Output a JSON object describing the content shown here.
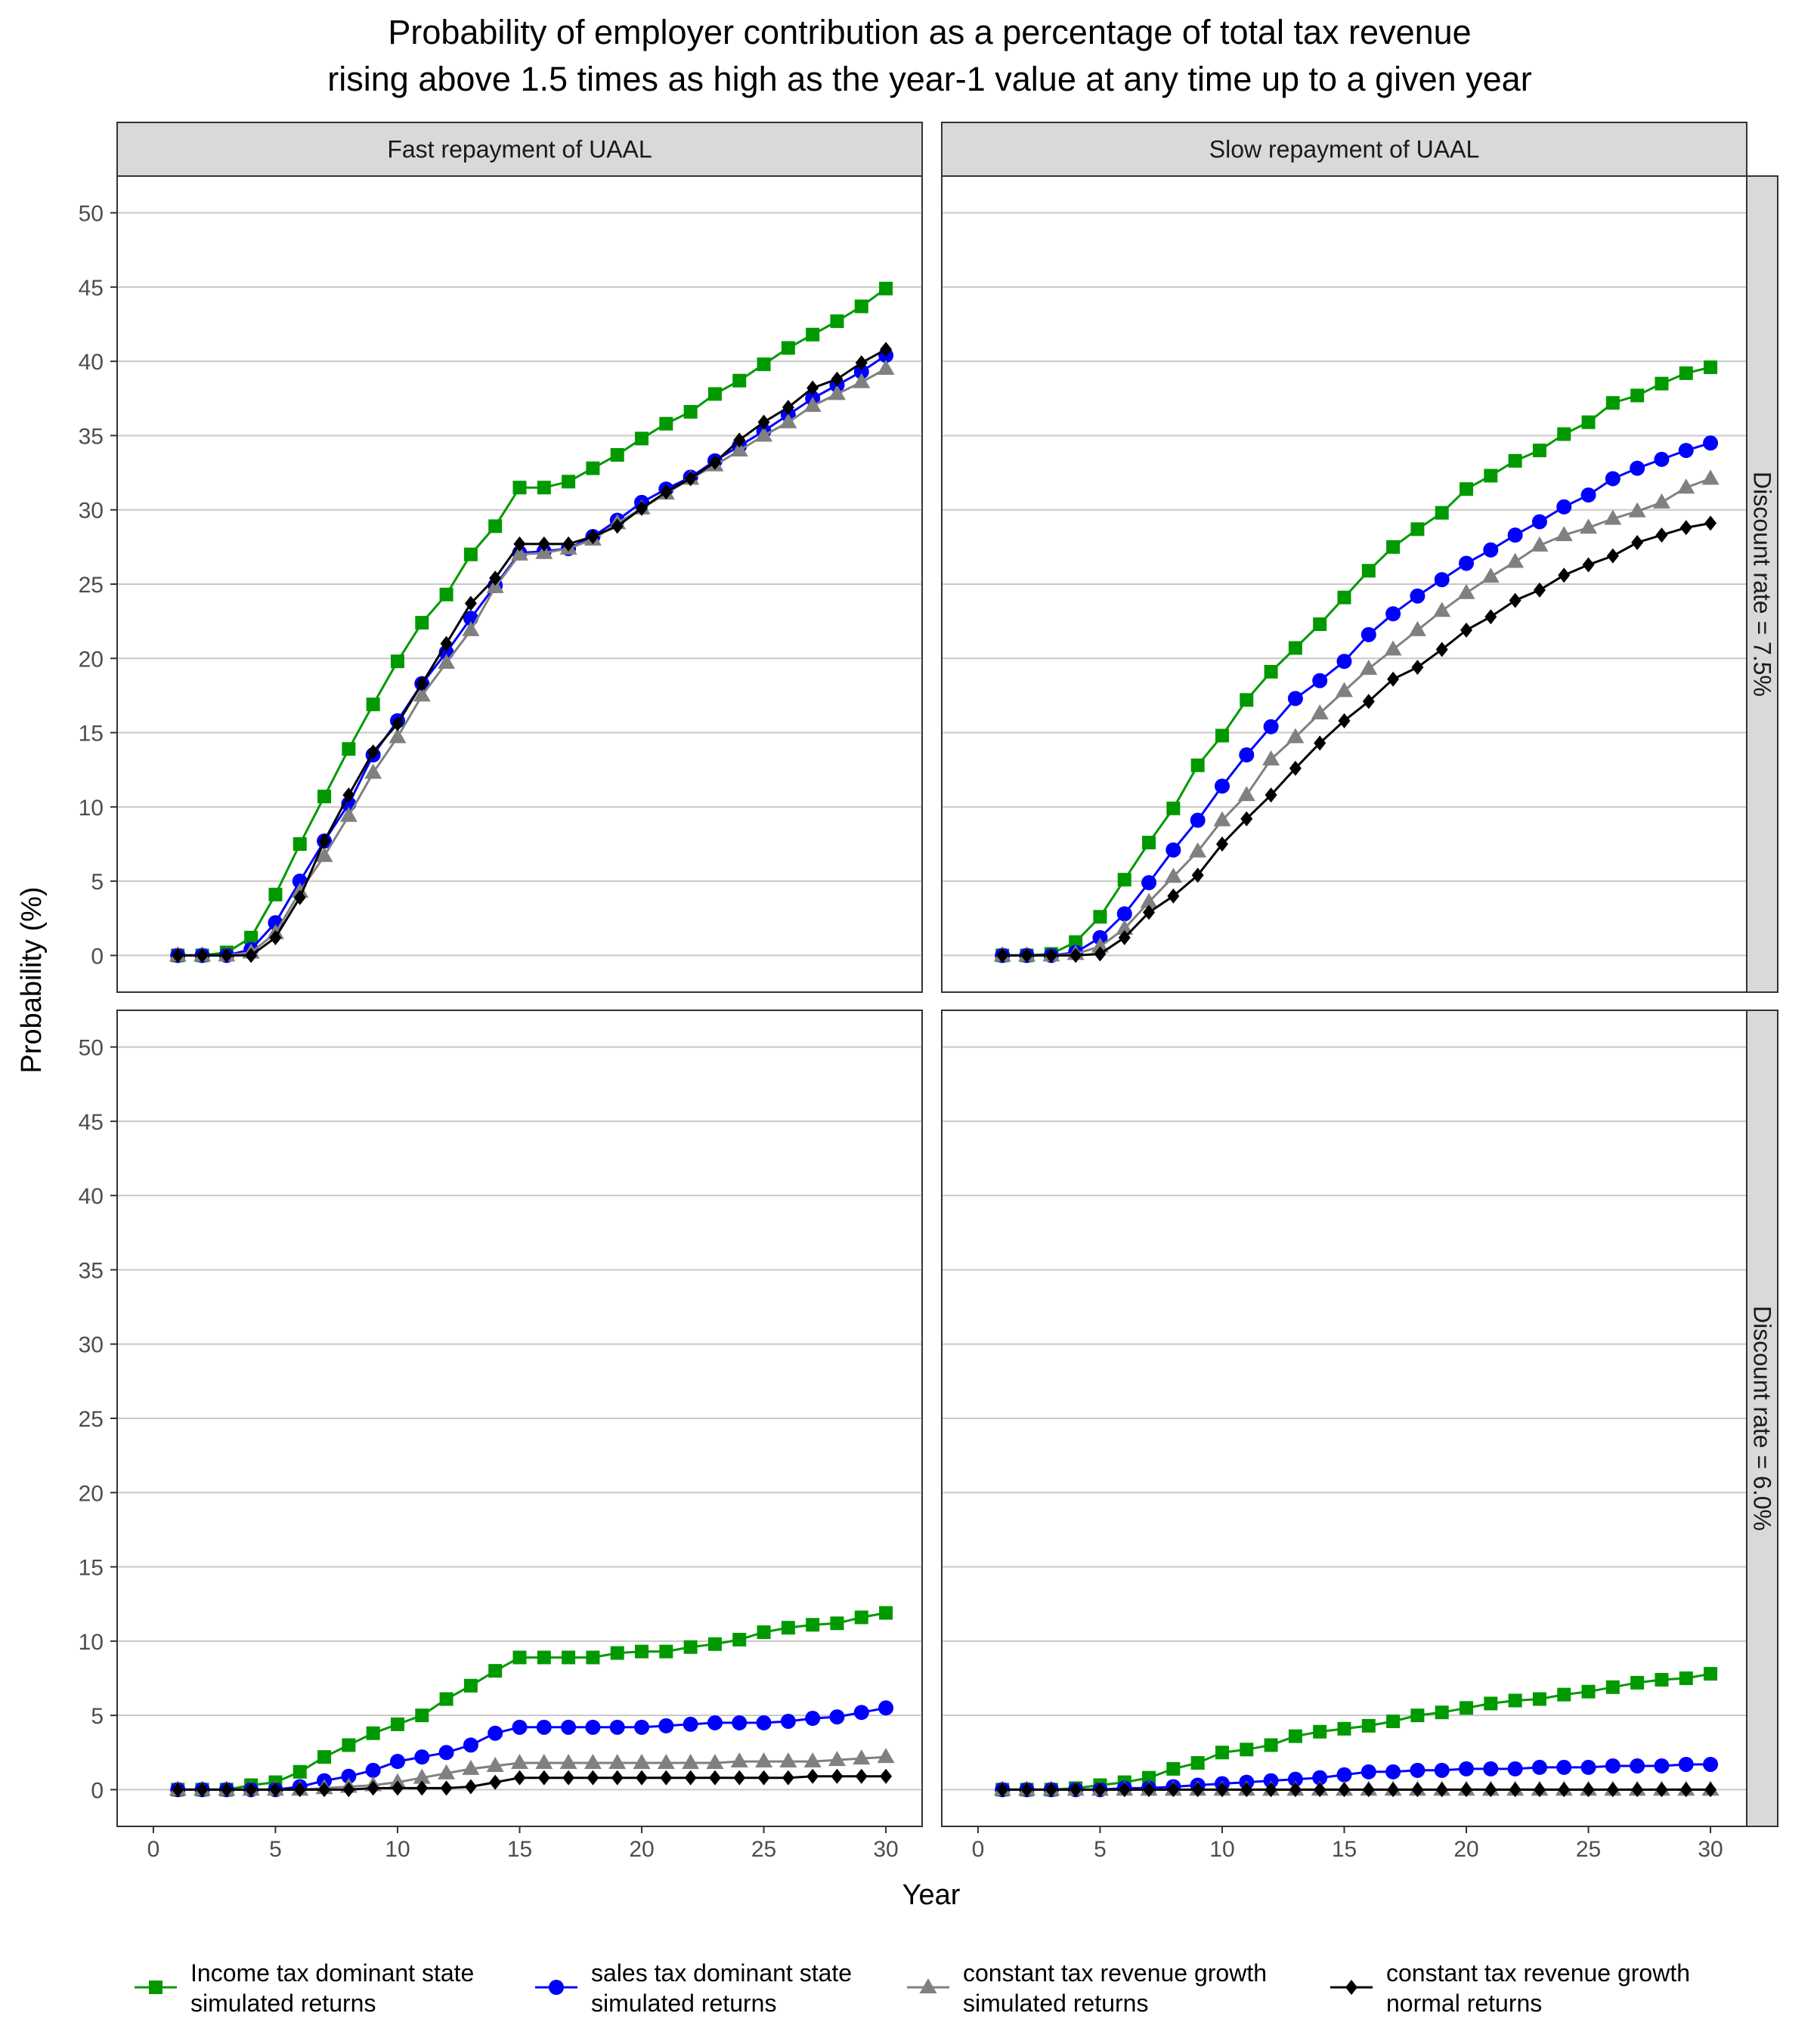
{
  "chart_data": {
    "type": "line",
    "title_line1": "Probability of employer contribution as a percentage of total tax revenue",
    "title_line2": "rising above 1.5 times as high as the year-1 value at any time up to a given year",
    "xlabel": "Year",
    "ylabel": "Probability (%)",
    "xlim": [
      0,
      30
    ],
    "ylim": [
      0,
      50
    ],
    "xticks": [
      0,
      5,
      10,
      15,
      20,
      25,
      30
    ],
    "yticks": [
      0,
      5,
      10,
      15,
      20,
      25,
      30,
      35,
      40,
      45,
      50
    ],
    "grid": "horizontal",
    "legend_position": "bottom",
    "x": [
      1,
      2,
      3,
      4,
      5,
      6,
      7,
      8,
      9,
      10,
      11,
      12,
      13,
      14,
      15,
      16,
      17,
      18,
      19,
      20,
      21,
      22,
      23,
      24,
      25,
      26,
      27,
      28,
      29,
      30
    ],
    "column_labels": [
      "Fast repayment of UAAL",
      "Slow repayment of UAAL"
    ],
    "row_labels": [
      "Discount rate = 7.5%",
      "Discount rate = 6.0%"
    ],
    "series_styles": [
      {
        "key": "income",
        "label_line1": "Income tax dominant state",
        "label_line2": "simulated returns",
        "color": "#009900",
        "marker": "square"
      },
      {
        "key": "sales",
        "label_line1": "sales tax dominant state",
        "label_line2": "simulated returns",
        "color": "#0000ff",
        "marker": "circle"
      },
      {
        "key": "constant_sim",
        "label_line1": "constant tax revenue growth",
        "label_line2": "simulated returns",
        "color": "#808080",
        "marker": "triangle"
      },
      {
        "key": "constant_normal",
        "label_line1": "constant tax revenue growth",
        "label_line2": "normal returns",
        "color": "#000000",
        "marker": "diamond"
      }
    ],
    "panels": [
      {
        "column": 0,
        "row": 0,
        "series": [
          {
            "key": "income",
            "values": [
              0,
              0,
              0.2,
              1.2,
              4.1,
              7.5,
              10.7,
              13.9,
              16.9,
              19.8,
              22.4,
              24.3,
              27.0,
              28.9,
              31.5,
              31.5,
              31.9,
              32.8,
              33.7,
              34.8,
              35.8,
              36.6,
              37.8,
              38.7,
              39.8,
              40.9,
              41.8,
              42.7,
              43.7,
              44.9
            ]
          },
          {
            "key": "sales",
            "values": [
              0,
              0,
              0,
              0.4,
              2.2,
              5.0,
              7.7,
              10.2,
              13.5,
              15.8,
              18.3,
              20.4,
              22.7,
              24.9,
              27.1,
              27.2,
              27.4,
              28.2,
              29.3,
              30.5,
              31.4,
              32.2,
              33.3,
              34.3,
              35.3,
              36.4,
              37.5,
              38.4,
              39.3,
              40.4
            ]
          },
          {
            "key": "constant_sim",
            "values": [
              0,
              0,
              0,
              0.2,
              1.5,
              4.3,
              6.7,
              9.4,
              12.3,
              14.7,
              17.5,
              19.7,
              21.9,
              24.8,
              27.0,
              27.1,
              27.4,
              28.0,
              29.1,
              30.1,
              31.1,
              32.1,
              33.0,
              34.0,
              35.0,
              35.9,
              37.0,
              37.8,
              38.6,
              39.5
            ]
          },
          {
            "key": "constant_normal",
            "values": [
              0,
              0,
              0,
              0,
              1.2,
              3.9,
              7.7,
              10.8,
              13.7,
              15.6,
              18.3,
              21.0,
              23.7,
              25.4,
              27.7,
              27.7,
              27.7,
              28.2,
              28.9,
              30.1,
              31.2,
              32.1,
              33.2,
              34.7,
              35.9,
              36.9,
              38.2,
              38.8,
              39.9,
              40.8
            ]
          }
        ]
      },
      {
        "column": 1,
        "row": 0,
        "series": [
          {
            "key": "income",
            "values": [
              0,
              0,
              0.1,
              0.9,
              2.6,
              5.1,
              7.6,
              9.9,
              12.8,
              14.8,
              17.2,
              19.1,
              20.7,
              22.3,
              24.1,
              25.9,
              27.5,
              28.7,
              29.8,
              31.4,
              32.3,
              33.3,
              34.0,
              35.1,
              35.9,
              37.2,
              37.7,
              38.5,
              39.2,
              39.6
            ]
          },
          {
            "key": "sales",
            "values": [
              0,
              0,
              0,
              0.2,
              1.2,
              2.8,
              4.9,
              7.1,
              9.1,
              11.4,
              13.5,
              15.4,
              17.3,
              18.5,
              19.8,
              21.6,
              23.0,
              24.2,
              25.3,
              26.4,
              27.3,
              28.3,
              29.2,
              30.2,
              31.0,
              32.1,
              32.8,
              33.4,
              34.0,
              34.5
            ]
          },
          {
            "key": "constant_sim",
            "values": [
              0,
              0,
              0,
              0.1,
              0.6,
              1.8,
              3.6,
              5.3,
              7.0,
              9.1,
              10.8,
              13.2,
              14.7,
              16.3,
              17.8,
              19.3,
              20.6,
              21.9,
              23.2,
              24.4,
              25.5,
              26.5,
              27.6,
              28.3,
              28.8,
              29.4,
              29.9,
              30.5,
              31.5,
              32.1
            ]
          },
          {
            "key": "constant_normal",
            "values": [
              0,
              0,
              0,
              0,
              0.1,
              1.2,
              2.9,
              4.0,
              5.4,
              7.5,
              9.2,
              10.8,
              12.6,
              14.3,
              15.8,
              17.1,
              18.6,
              19.4,
              20.6,
              21.9,
              22.8,
              23.9,
              24.6,
              25.6,
              26.3,
              26.9,
              27.8,
              28.3,
              28.8,
              29.1
            ]
          }
        ]
      },
      {
        "column": 0,
        "row": 1,
        "series": [
          {
            "key": "income",
            "values": [
              0,
              0,
              0,
              0.3,
              0.5,
              1.2,
              2.2,
              3.0,
              3.8,
              4.4,
              5.0,
              6.1,
              7.0,
              8.0,
              8.9,
              8.9,
              8.9,
              8.9,
              9.2,
              9.3,
              9.3,
              9.6,
              9.8,
              10.1,
              10.6,
              10.9,
              11.1,
              11.2,
              11.6,
              11.9
            ]
          },
          {
            "key": "sales",
            "values": [
              0,
              0,
              0,
              0,
              0,
              0.2,
              0.6,
              0.9,
              1.3,
              1.9,
              2.2,
              2.5,
              3.0,
              3.8,
              4.2,
              4.2,
              4.2,
              4.2,
              4.2,
              4.2,
              4.3,
              4.4,
              4.5,
              4.5,
              4.5,
              4.6,
              4.8,
              4.9,
              5.2,
              5.5
            ]
          },
          {
            "key": "constant_sim",
            "values": [
              0,
              0,
              0,
              0,
              0,
              0,
              0.1,
              0.2,
              0.3,
              0.5,
              0.8,
              1.1,
              1.4,
              1.6,
              1.8,
              1.8,
              1.8,
              1.8,
              1.8,
              1.8,
              1.8,
              1.8,
              1.8,
              1.9,
              1.9,
              1.9,
              1.9,
              2.0,
              2.1,
              2.2
            ]
          },
          {
            "key": "constant_normal",
            "values": [
              0,
              0,
              0,
              0,
              0,
              0,
              0,
              0,
              0.1,
              0.1,
              0.1,
              0.1,
              0.2,
              0.5,
              0.8,
              0.8,
              0.8,
              0.8,
              0.8,
              0.8,
              0.8,
              0.8,
              0.8,
              0.8,
              0.8,
              0.8,
              0.9,
              0.9,
              0.9,
              0.9
            ]
          }
        ]
      },
      {
        "column": 1,
        "row": 1,
        "series": [
          {
            "key": "income",
            "values": [
              0,
              0,
              0,
              0.1,
              0.3,
              0.5,
              0.8,
              1.4,
              1.8,
              2.5,
              2.7,
              3.0,
              3.6,
              3.9,
              4.1,
              4.3,
              4.6,
              5.0,
              5.2,
              5.5,
              5.8,
              6.0,
              6.1,
              6.4,
              6.6,
              6.9,
              7.2,
              7.4,
              7.5,
              7.8
            ]
          },
          {
            "key": "sales",
            "values": [
              0,
              0,
              0,
              0,
              0,
              0.1,
              0.1,
              0.2,
              0.3,
              0.4,
              0.5,
              0.6,
              0.7,
              0.8,
              1.0,
              1.2,
              1.2,
              1.3,
              1.3,
              1.4,
              1.4,
              1.4,
              1.5,
              1.5,
              1.5,
              1.6,
              1.6,
              1.6,
              1.7,
              1.7
            ]
          },
          {
            "key": "constant_sim",
            "values": [
              0,
              0,
              0,
              0,
              0,
              0,
              0,
              0,
              0,
              0,
              0,
              0,
              0,
              0,
              0,
              0,
              0,
              0,
              0,
              0,
              0,
              0,
              0,
              0,
              0,
              0,
              0,
              0,
              0,
              0
            ]
          },
          {
            "key": "constant_normal",
            "values": [
              0,
              0,
              0,
              0,
              0,
              0,
              0,
              0,
              0,
              0,
              0,
              0,
              0,
              0,
              0,
              0,
              0,
              0,
              0,
              0,
              0,
              0,
              0,
              0,
              0,
              0,
              0,
              0,
              0,
              0
            ]
          }
        ]
      }
    ]
  }
}
